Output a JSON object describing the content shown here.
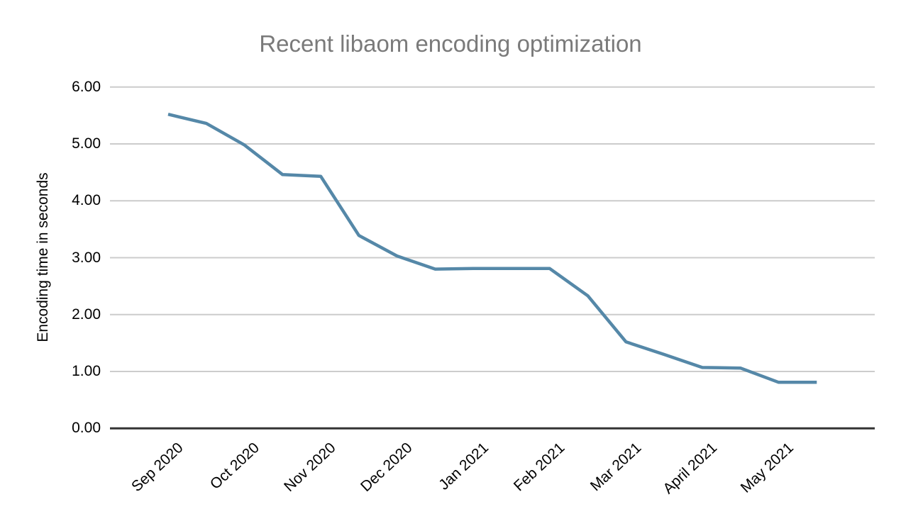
{
  "page": {
    "background_color": "#ffffff"
  },
  "chart_data": {
    "type": "line",
    "title": "Recent libaom encoding optimization",
    "xlabel": "",
    "ylabel": "Encoding time in seconds",
    "x_tick_labels": [
      "Sep 2020",
      "Oct 2020",
      "Nov 2020",
      "Dec 2020",
      "Jan 2021",
      "Feb 2021",
      "Mar 2021",
      "April 2021",
      "May 2021"
    ],
    "y_tick_labels": [
      "0.00",
      "1.00",
      "2.00",
      "3.00",
      "4.00",
      "5.00",
      "6.00"
    ],
    "ylim": [
      0,
      6
    ],
    "grid": true,
    "legend_position": "none",
    "points_per_x_tick": 2,
    "series": [
      {
        "color": "#5588a8",
        "values": [
          5.52,
          5.36,
          4.98,
          4.46,
          4.43,
          3.39,
          3.03,
          2.8,
          2.81,
          2.81,
          2.81,
          2.33,
          1.52,
          1.3,
          1.07,
          1.06,
          0.81,
          0.81
        ]
      }
    ],
    "colors": {
      "title": "#7a7a7a",
      "grid": "#cccccc",
      "axis": "#333333",
      "tick_labels": "#000000"
    }
  }
}
